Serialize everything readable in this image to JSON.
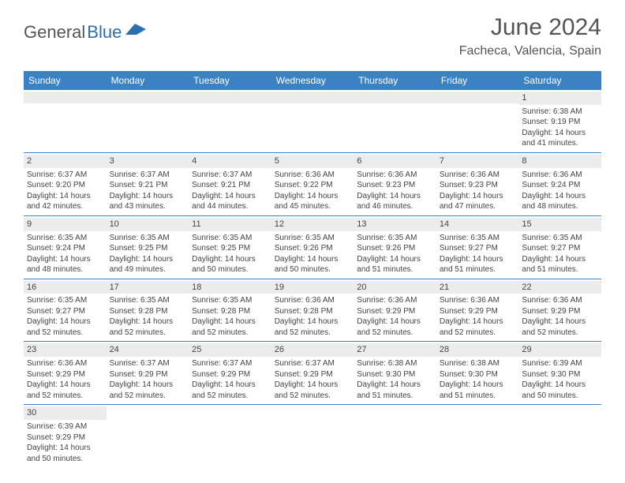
{
  "logo": {
    "general": "General",
    "blue": "Blue",
    "shape_color": "#2c6fb0"
  },
  "title": "June 2024",
  "location": "Facheca, Valencia, Spain",
  "weekdays": [
    "Sunday",
    "Monday",
    "Tuesday",
    "Wednesday",
    "Thursday",
    "Friday",
    "Saturday"
  ],
  "header_bg": "#3b82c4",
  "band_bg": "#ececec",
  "rule_color": "#3b82c4",
  "weeks": [
    {
      "days": [
        {
          "n": "",
          "sr": "",
          "ss": "",
          "dl1": "",
          "dl2": ""
        },
        {
          "n": "",
          "sr": "",
          "ss": "",
          "dl1": "",
          "dl2": ""
        },
        {
          "n": "",
          "sr": "",
          "ss": "",
          "dl1": "",
          "dl2": ""
        },
        {
          "n": "",
          "sr": "",
          "ss": "",
          "dl1": "",
          "dl2": ""
        },
        {
          "n": "",
          "sr": "",
          "ss": "",
          "dl1": "",
          "dl2": ""
        },
        {
          "n": "",
          "sr": "",
          "ss": "",
          "dl1": "",
          "dl2": ""
        },
        {
          "n": "1",
          "sr": "Sunrise: 6:38 AM",
          "ss": "Sunset: 9:19 PM",
          "dl1": "Daylight: 14 hours",
          "dl2": "and 41 minutes."
        }
      ]
    },
    {
      "days": [
        {
          "n": "2",
          "sr": "Sunrise: 6:37 AM",
          "ss": "Sunset: 9:20 PM",
          "dl1": "Daylight: 14 hours",
          "dl2": "and 42 minutes."
        },
        {
          "n": "3",
          "sr": "Sunrise: 6:37 AM",
          "ss": "Sunset: 9:21 PM",
          "dl1": "Daylight: 14 hours",
          "dl2": "and 43 minutes."
        },
        {
          "n": "4",
          "sr": "Sunrise: 6:37 AM",
          "ss": "Sunset: 9:21 PM",
          "dl1": "Daylight: 14 hours",
          "dl2": "and 44 minutes."
        },
        {
          "n": "5",
          "sr": "Sunrise: 6:36 AM",
          "ss": "Sunset: 9:22 PM",
          "dl1": "Daylight: 14 hours",
          "dl2": "and 45 minutes."
        },
        {
          "n": "6",
          "sr": "Sunrise: 6:36 AM",
          "ss": "Sunset: 9:23 PM",
          "dl1": "Daylight: 14 hours",
          "dl2": "and 46 minutes."
        },
        {
          "n": "7",
          "sr": "Sunrise: 6:36 AM",
          "ss": "Sunset: 9:23 PM",
          "dl1": "Daylight: 14 hours",
          "dl2": "and 47 minutes."
        },
        {
          "n": "8",
          "sr": "Sunrise: 6:36 AM",
          "ss": "Sunset: 9:24 PM",
          "dl1": "Daylight: 14 hours",
          "dl2": "and 48 minutes."
        }
      ]
    },
    {
      "days": [
        {
          "n": "9",
          "sr": "Sunrise: 6:35 AM",
          "ss": "Sunset: 9:24 PM",
          "dl1": "Daylight: 14 hours",
          "dl2": "and 48 minutes."
        },
        {
          "n": "10",
          "sr": "Sunrise: 6:35 AM",
          "ss": "Sunset: 9:25 PM",
          "dl1": "Daylight: 14 hours",
          "dl2": "and 49 minutes."
        },
        {
          "n": "11",
          "sr": "Sunrise: 6:35 AM",
          "ss": "Sunset: 9:25 PM",
          "dl1": "Daylight: 14 hours",
          "dl2": "and 50 minutes."
        },
        {
          "n": "12",
          "sr": "Sunrise: 6:35 AM",
          "ss": "Sunset: 9:26 PM",
          "dl1": "Daylight: 14 hours",
          "dl2": "and 50 minutes."
        },
        {
          "n": "13",
          "sr": "Sunrise: 6:35 AM",
          "ss": "Sunset: 9:26 PM",
          "dl1": "Daylight: 14 hours",
          "dl2": "and 51 minutes."
        },
        {
          "n": "14",
          "sr": "Sunrise: 6:35 AM",
          "ss": "Sunset: 9:27 PM",
          "dl1": "Daylight: 14 hours",
          "dl2": "and 51 minutes."
        },
        {
          "n": "15",
          "sr": "Sunrise: 6:35 AM",
          "ss": "Sunset: 9:27 PM",
          "dl1": "Daylight: 14 hours",
          "dl2": "and 51 minutes."
        }
      ]
    },
    {
      "days": [
        {
          "n": "16",
          "sr": "Sunrise: 6:35 AM",
          "ss": "Sunset: 9:27 PM",
          "dl1": "Daylight: 14 hours",
          "dl2": "and 52 minutes."
        },
        {
          "n": "17",
          "sr": "Sunrise: 6:35 AM",
          "ss": "Sunset: 9:28 PM",
          "dl1": "Daylight: 14 hours",
          "dl2": "and 52 minutes."
        },
        {
          "n": "18",
          "sr": "Sunrise: 6:35 AM",
          "ss": "Sunset: 9:28 PM",
          "dl1": "Daylight: 14 hours",
          "dl2": "and 52 minutes."
        },
        {
          "n": "19",
          "sr": "Sunrise: 6:36 AM",
          "ss": "Sunset: 9:28 PM",
          "dl1": "Daylight: 14 hours",
          "dl2": "and 52 minutes."
        },
        {
          "n": "20",
          "sr": "Sunrise: 6:36 AM",
          "ss": "Sunset: 9:29 PM",
          "dl1": "Daylight: 14 hours",
          "dl2": "and 52 minutes."
        },
        {
          "n": "21",
          "sr": "Sunrise: 6:36 AM",
          "ss": "Sunset: 9:29 PM",
          "dl1": "Daylight: 14 hours",
          "dl2": "and 52 minutes."
        },
        {
          "n": "22",
          "sr": "Sunrise: 6:36 AM",
          "ss": "Sunset: 9:29 PM",
          "dl1": "Daylight: 14 hours",
          "dl2": "and 52 minutes."
        }
      ]
    },
    {
      "days": [
        {
          "n": "23",
          "sr": "Sunrise: 6:36 AM",
          "ss": "Sunset: 9:29 PM",
          "dl1": "Daylight: 14 hours",
          "dl2": "and 52 minutes."
        },
        {
          "n": "24",
          "sr": "Sunrise: 6:37 AM",
          "ss": "Sunset: 9:29 PM",
          "dl1": "Daylight: 14 hours",
          "dl2": "and 52 minutes."
        },
        {
          "n": "25",
          "sr": "Sunrise: 6:37 AM",
          "ss": "Sunset: 9:29 PM",
          "dl1": "Daylight: 14 hours",
          "dl2": "and 52 minutes."
        },
        {
          "n": "26",
          "sr": "Sunrise: 6:37 AM",
          "ss": "Sunset: 9:29 PM",
          "dl1": "Daylight: 14 hours",
          "dl2": "and 52 minutes."
        },
        {
          "n": "27",
          "sr": "Sunrise: 6:38 AM",
          "ss": "Sunset: 9:30 PM",
          "dl1": "Daylight: 14 hours",
          "dl2": "and 51 minutes."
        },
        {
          "n": "28",
          "sr": "Sunrise: 6:38 AM",
          "ss": "Sunset: 9:30 PM",
          "dl1": "Daylight: 14 hours",
          "dl2": "and 51 minutes."
        },
        {
          "n": "29",
          "sr": "Sunrise: 6:39 AM",
          "ss": "Sunset: 9:30 PM",
          "dl1": "Daylight: 14 hours",
          "dl2": "and 50 minutes."
        }
      ]
    },
    {
      "days": [
        {
          "n": "30",
          "sr": "Sunrise: 6:39 AM",
          "ss": "Sunset: 9:29 PM",
          "dl1": "Daylight: 14 hours",
          "dl2": "and 50 minutes."
        },
        {
          "n": "",
          "sr": "",
          "ss": "",
          "dl1": "",
          "dl2": ""
        },
        {
          "n": "",
          "sr": "",
          "ss": "",
          "dl1": "",
          "dl2": ""
        },
        {
          "n": "",
          "sr": "",
          "ss": "",
          "dl1": "",
          "dl2": ""
        },
        {
          "n": "",
          "sr": "",
          "ss": "",
          "dl1": "",
          "dl2": ""
        },
        {
          "n": "",
          "sr": "",
          "ss": "",
          "dl1": "",
          "dl2": ""
        },
        {
          "n": "",
          "sr": "",
          "ss": "",
          "dl1": "",
          "dl2": ""
        }
      ]
    }
  ]
}
